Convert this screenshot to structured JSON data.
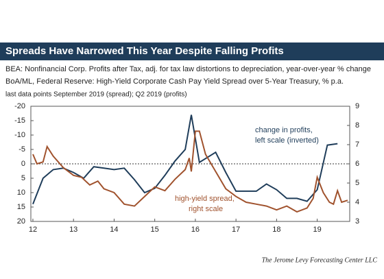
{
  "chart_data": {
    "type": "line",
    "title": "Spreads Have Narrowed This Year Despite Falling Profits",
    "subtitles": [
      "BEA: Nonfinancial Corp. Profits after Tax, adj. for tax law distortions to depreciation, year-over-year % change",
      "BoA/ML, Federal Reserve: High-Yield Corporate Cash Pay Yield Spread over 5-Year Treasury, % p.a.",
      "last data points September 2019 (spread); Q2 2019 (profits)"
    ],
    "annotations": [
      {
        "lines": [
          "change in profits,",
          "left scale (inverted)"
        ],
        "color": "#1f3d5a"
      },
      {
        "lines": [
          "high-yield spread,",
          "right scale"
        ],
        "color": "#a0522d"
      }
    ],
    "source": "The Jerome Levy Forecasting Center LLC",
    "xlim": [
      11.95,
      19.8
    ],
    "xticks": [
      12,
      13,
      14,
      15,
      16,
      17,
      18,
      19
    ],
    "ylim": [
      -20,
      20
    ],
    "y_inverted": true,
    "yticks": [
      -20,
      -15,
      -10,
      -5,
      0,
      5,
      10,
      15,
      20
    ],
    "y2lim": [
      3,
      9
    ],
    "y2ticks": [
      3,
      4,
      5,
      6,
      7,
      8,
      9
    ],
    "series": [
      {
        "name": "change in profits",
        "color": "#1f3d5a",
        "axis": "y",
        "x": [
          12,
          12.25,
          12.5,
          12.75,
          13,
          13.25,
          13.5,
          13.75,
          14,
          14.25,
          14.5,
          14.75,
          15,
          15.25,
          15.5,
          15.75,
          15.9,
          16.1,
          16.5,
          16.75,
          17,
          17.25,
          17.5,
          17.75,
          18,
          18.25,
          18.5,
          18.75,
          19,
          19.25,
          19.5
        ],
        "values": [
          14,
          5,
          2,
          1.5,
          3,
          5,
          1,
          1.5,
          2,
          1.5,
          5.5,
          10,
          8.5,
          4,
          -1,
          -5,
          -17,
          -0.5,
          -4,
          3,
          9.5,
          9.5,
          9.5,
          7,
          9,
          12,
          12,
          13,
          9,
          -6.5,
          -7
        ]
      },
      {
        "name": "high-yield spread",
        "color": "#a0522d",
        "axis": "y2",
        "x": [
          12,
          12.1,
          12.25,
          12.35,
          12.5,
          12.75,
          13,
          13.2,
          13.4,
          13.6,
          13.75,
          14,
          14.25,
          14.5,
          14.75,
          15,
          15.25,
          15.5,
          15.75,
          15.85,
          15.9,
          16,
          16.1,
          16.25,
          16.5,
          16.75,
          17,
          17.25,
          17.5,
          17.75,
          18,
          18.25,
          18.5,
          18.75,
          18.9,
          19,
          19.15,
          19.3,
          19.4,
          19.5,
          19.6,
          19.75
        ],
        "values": [
          6.5,
          6,
          6.1,
          6.9,
          6.4,
          5.8,
          5.4,
          5.3,
          4.9,
          5.1,
          4.7,
          4.5,
          3.9,
          3.8,
          4.3,
          4.8,
          4.6,
          5.2,
          5.7,
          6.3,
          5.6,
          7.7,
          7.7,
          6.5,
          5.6,
          4.7,
          4.3,
          4,
          3.9,
          3.8,
          3.6,
          3.8,
          3.5,
          3.7,
          4.2,
          5.3,
          4.5,
          4,
          3.9,
          4.6,
          4,
          4.1
        ]
      }
    ]
  }
}
